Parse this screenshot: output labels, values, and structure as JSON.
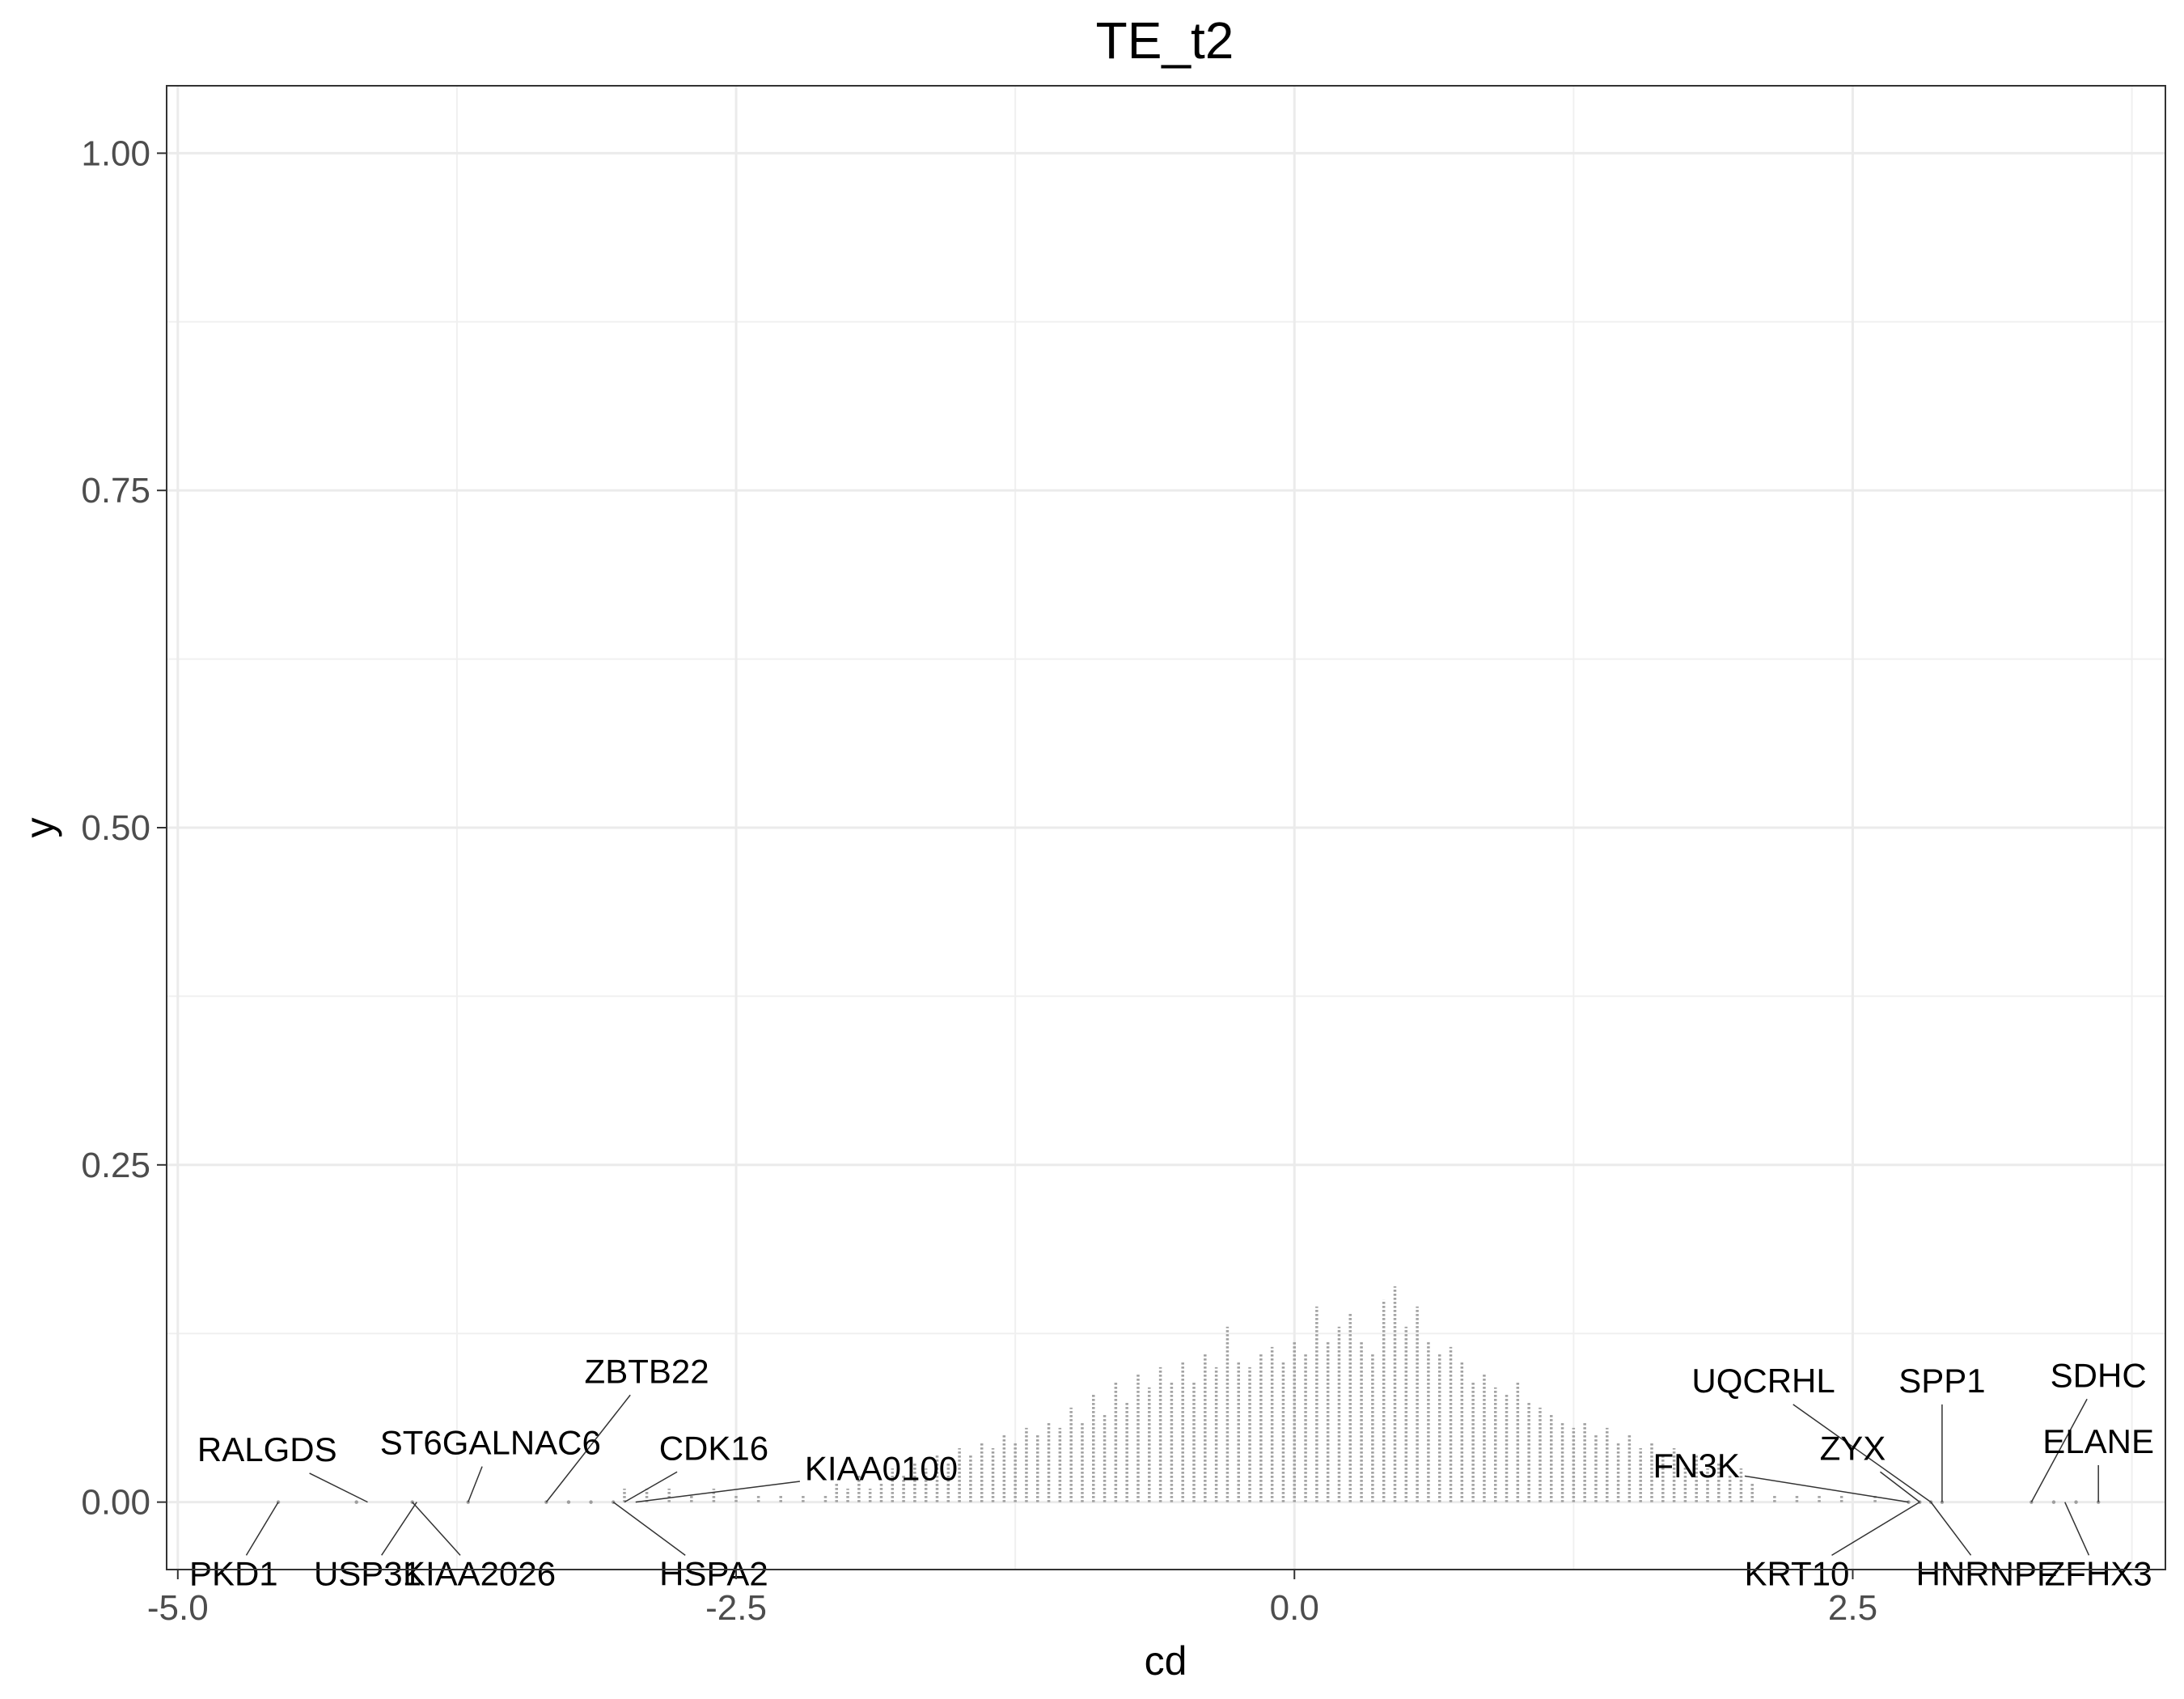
{
  "chart_data": {
    "type": "scatter",
    "title": "TE_t2",
    "xlabel": "cd",
    "ylabel": "y",
    "xlim": [
      -5.05,
      3.9
    ],
    "ylim": [
      -0.05,
      1.05
    ],
    "x_ticks": [
      -5.0,
      -2.5,
      0.0,
      2.5
    ],
    "x_tick_labels": [
      "-5.0",
      "-2.5",
      "0.0",
      "2.5"
    ],
    "y_ticks": [
      0.0,
      0.25,
      0.5,
      0.75,
      1.0
    ],
    "y_tick_labels": [
      "0.00",
      "0.25",
      "0.50",
      "0.75",
      "1.00"
    ],
    "grid": true,
    "legend": "none",
    "point_color": "#9e9e9e",
    "dot_spacing": 0.0043,
    "columns": {
      "bin_width": 0.05,
      "x_start": -2.1,
      "stack_heights": [
        0.005,
        0.015,
        0.01,
        0.02,
        0.01,
        0.015,
        0.025,
        0.02,
        0.03,
        0.025,
        0.035,
        0.03,
        0.04,
        0.035,
        0.045,
        0.04,
        0.05,
        0.045,
        0.055,
        0.05,
        0.06,
        0.055,
        0.07,
        0.06,
        0.08,
        0.065,
        0.09,
        0.075,
        0.095,
        0.085,
        0.1,
        0.09,
        0.105,
        0.09,
        0.11,
        0.1,
        0.13,
        0.105,
        0.1,
        0.11,
        0.115,
        0.105,
        0.12,
        0.11,
        0.145,
        0.12,
        0.13,
        0.14,
        0.12,
        0.11,
        0.15,
        0.16,
        0.13,
        0.145,
        0.12,
        0.11,
        0.115,
        0.105,
        0.09,
        0.095,
        0.085,
        0.08,
        0.09,
        0.075,
        0.07,
        0.065,
        0.06,
        0.055,
        0.06,
        0.05,
        0.055,
        0.045,
        0.05,
        0.04,
        0.045,
        0.035,
        0.04,
        0.03,
        0.035,
        0.025,
        0.03,
        0.02,
        0.025,
        0.015
      ],
      "tail_left": [
        [
          -3.0,
          0.01
        ],
        [
          -2.9,
          0.01
        ],
        [
          -2.8,
          0.01
        ],
        [
          -2.7,
          0.005
        ],
        [
          -2.6,
          0.01
        ],
        [
          -2.5,
          0.005
        ],
        [
          -2.4,
          0.005
        ],
        [
          -2.3,
          0.005
        ],
        [
          -2.2,
          0.005
        ]
      ],
      "tail_right": [
        [
          2.15,
          0.005
        ],
        [
          2.25,
          0.005
        ],
        [
          2.35,
          0.005
        ],
        [
          2.45,
          0.005
        ],
        [
          2.6,
          0.005
        ]
      ]
    },
    "isolated_points": [
      -4.55,
      -4.2,
      -3.95,
      -3.7,
      -3.35,
      -3.25,
      -3.15,
      -3.05,
      2.75,
      2.8,
      2.85,
      2.9,
      3.3,
      3.4,
      3.5,
      3.6
    ],
    "annotations": [
      {
        "label": "PKD1",
        "point": [
          -4.55,
          0.0
        ],
        "text": [
          -4.75,
          -0.055
        ]
      },
      {
        "label": "RALGDS",
        "point": [
          -4.15,
          0.0
        ],
        "text": [
          -4.6,
          0.037
        ]
      },
      {
        "label": "USP31",
        "point": [
          -3.93,
          0.0
        ],
        "text": [
          -4.15,
          -0.055
        ]
      },
      {
        "label": "ST6GALNAC6",
        "point": [
          -3.7,
          0.0
        ],
        "text": [
          -3.6,
          0.042
        ]
      },
      {
        "label": "KIAA2026",
        "point": [
          -3.95,
          0.0
        ],
        "text": [
          -3.65,
          -0.055
        ]
      },
      {
        "label": "ZBTB22",
        "point": [
          -3.35,
          0.0
        ],
        "text": [
          -2.9,
          0.095
        ]
      },
      {
        "label": "CDK16",
        "point": [
          -3.0,
          0.0
        ],
        "text": [
          -2.6,
          0.038
        ]
      },
      {
        "label": "HSPA2",
        "point": [
          -3.05,
          0.0
        ],
        "text": [
          -2.6,
          -0.055
        ]
      },
      {
        "label": "KIAA0100",
        "point": [
          -2.95,
          0.0
        ],
        "text": [
          -1.85,
          0.023
        ]
      },
      {
        "label": "UQCRHL",
        "point": [
          2.85,
          0.0
        ],
        "text": [
          2.1,
          0.088
        ]
      },
      {
        "label": "SPP1",
        "point": [
          2.9,
          0.0
        ],
        "text": [
          2.9,
          0.088
        ]
      },
      {
        "label": "ZYX",
        "point": [
          2.8,
          0.0
        ],
        "text": [
          2.5,
          0.038
        ]
      },
      {
        "label": "FN3K",
        "point": [
          2.75,
          0.0
        ],
        "text": [
          1.8,
          0.025
        ]
      },
      {
        "label": "KRT10",
        "point": [
          2.8,
          0.0
        ],
        "text": [
          2.25,
          -0.055
        ]
      },
      {
        "label": "HNRNPF",
        "point": [
          2.85,
          0.0
        ],
        "text": [
          3.1,
          -0.055
        ]
      },
      {
        "label": "SDHC",
        "point": [
          3.3,
          0.0
        ],
        "text": [
          3.6,
          0.092
        ]
      },
      {
        "label": "ELANE",
        "point": [
          3.6,
          0.0
        ],
        "text": [
          3.6,
          0.043
        ]
      },
      {
        "label": "ZFHX3",
        "point": [
          3.45,
          0.0
        ],
        "text": [
          3.6,
          -0.055
        ]
      }
    ]
  }
}
